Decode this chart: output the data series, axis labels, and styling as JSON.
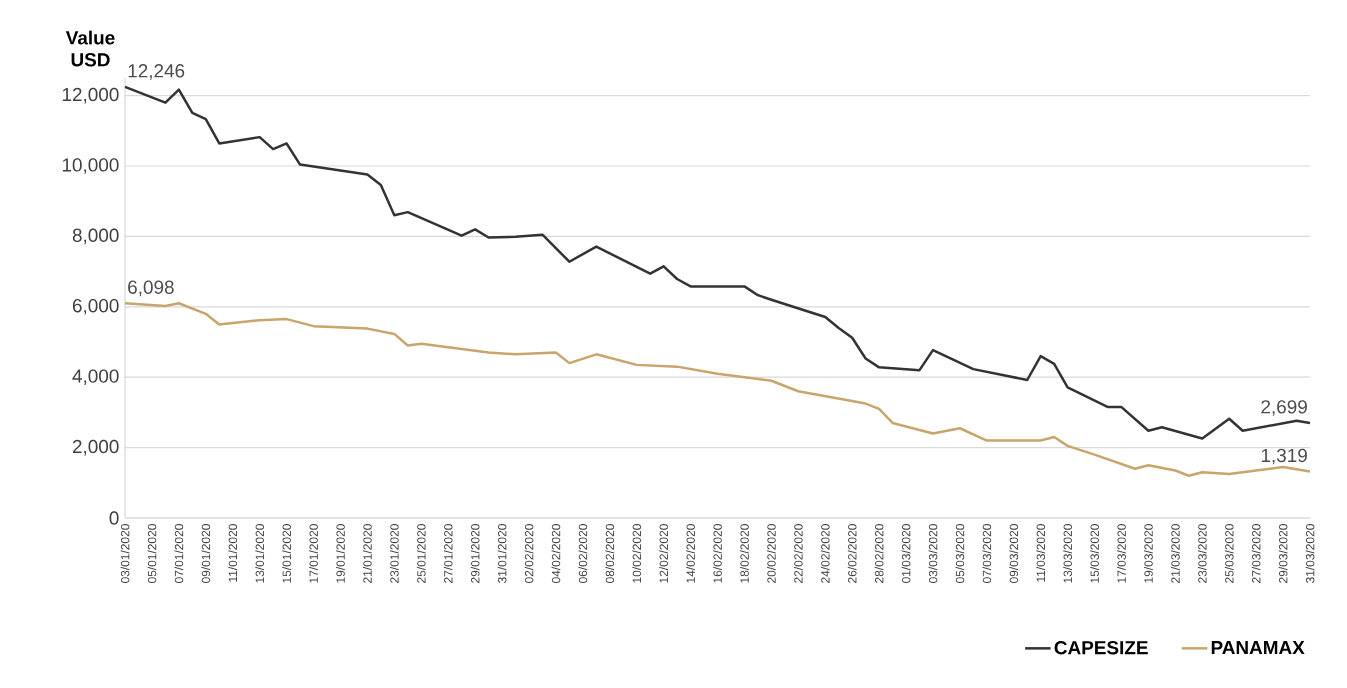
{
  "chart_data": {
    "type": "line",
    "ylabel": "Value USD",
    "xlim": [
      "2020-01-03",
      "2020-03-31"
    ],
    "ylim": [
      0,
      12500
    ],
    "xticks": [
      {
        "value": "2020-01-03",
        "label": "03/01/2020"
      },
      {
        "value": "2020-01-05",
        "label": "05/01/2020"
      },
      {
        "value": "2020-01-07",
        "label": "07/01/2020"
      },
      {
        "value": "2020-01-09",
        "label": "09/01/2020"
      },
      {
        "value": "2020-01-11",
        "label": "11/01/2020"
      },
      {
        "value": "2020-01-13",
        "label": "13/01/2020"
      },
      {
        "value": "2020-01-15",
        "label": "15/01/2020"
      },
      {
        "value": "2020-01-17",
        "label": "17/01/2020"
      },
      {
        "value": "2020-01-19",
        "label": "19/01/2020"
      },
      {
        "value": "2020-01-21",
        "label": "21/01/2020"
      },
      {
        "value": "2020-01-23",
        "label": "23/01/2020"
      },
      {
        "value": "2020-01-25",
        "label": "25/01/2020"
      },
      {
        "value": "2020-01-27",
        "label": "27/01/2020"
      },
      {
        "value": "2020-01-29",
        "label": "29/01/2020"
      },
      {
        "value": "2020-01-31",
        "label": "31/01/2020"
      },
      {
        "value": "2020-02-02",
        "label": "02/02/2020"
      },
      {
        "value": "2020-02-04",
        "label": "04/02/2020"
      },
      {
        "value": "2020-02-06",
        "label": "06/02/2020"
      },
      {
        "value": "2020-02-08",
        "label": "08/02/2020"
      },
      {
        "value": "2020-02-10",
        "label": "10/02/2020"
      },
      {
        "value": "2020-02-12",
        "label": "12/02/2020"
      },
      {
        "value": "2020-02-14",
        "label": "14/02/2020"
      },
      {
        "value": "2020-02-16",
        "label": "16/02/2020"
      },
      {
        "value": "2020-02-18",
        "label": "18/02/2020"
      },
      {
        "value": "2020-02-20",
        "label": "20/02/2020"
      },
      {
        "value": "2020-02-22",
        "label": "22/02/2020"
      },
      {
        "value": "2020-02-24",
        "label": "24/02/2020"
      },
      {
        "value": "2020-02-26",
        "label": "26/02/2020"
      },
      {
        "value": "2020-02-28",
        "label": "28/02/2020"
      },
      {
        "value": "2020-03-01",
        "label": "01/03/2020"
      },
      {
        "value": "2020-03-03",
        "label": "03/03/2020"
      },
      {
        "value": "2020-03-05",
        "label": "05/03/2020"
      },
      {
        "value": "2020-03-07",
        "label": "07/03/2020"
      },
      {
        "value": "2020-03-09",
        "label": "09/03/2020"
      },
      {
        "value": "2020-03-11",
        "label": "11/03/2020"
      },
      {
        "value": "2020-03-13",
        "label": "13/03/2020"
      },
      {
        "value": "2020-03-15",
        "label": "15/03/2020"
      },
      {
        "value": "2020-03-17",
        "label": "17/03/2020"
      },
      {
        "value": "2020-03-19",
        "label": "19/03/2020"
      },
      {
        "value": "2020-03-21",
        "label": "21/03/2020"
      },
      {
        "value": "2020-03-23",
        "label": "23/03/2020"
      },
      {
        "value": "2020-03-25",
        "label": "25/03/2020"
      },
      {
        "value": "2020-03-27",
        "label": "27/03/2020"
      },
      {
        "value": "2020-03-29",
        "label": "29/03/2020"
      },
      {
        "value": "2020-03-31",
        "label": "31/03/2020"
      }
    ],
    "yticks": [
      0,
      {
        "value": 2000,
        "label": "2,000"
      },
      {
        "value": 4000,
        "label": "4,000"
      },
      {
        "value": 6000,
        "label": "6,000"
      },
      {
        "value": 8000,
        "label": "8,000"
      },
      {
        "value": 10000,
        "label": "10,000"
      },
      {
        "value": 12000,
        "label": "12,000"
      }
    ],
    "grid": "y",
    "legend": "bottom right",
    "marker": "none",
    "line_style": "solid",
    "series": [
      {
        "name": "CAPESIZE",
        "color": "#333333",
        "x": [
          "2020-01-03",
          "2020-01-06",
          "2020-01-07",
          "2020-01-08",
          "2020-01-09",
          "2020-01-10",
          "2020-01-13",
          "2020-01-14",
          "2020-01-15",
          "2020-01-16",
          "2020-01-21",
          "2020-01-22",
          "2020-01-23",
          "2020-01-24",
          "2020-01-28",
          "2020-01-29",
          "2020-01-30",
          "2020-02-01",
          "2020-02-03",
          "2020-02-05",
          "2020-02-07",
          "2020-02-11",
          "2020-02-12",
          "2020-02-13",
          "2020-02-14",
          "2020-02-18",
          "2020-02-19",
          "2020-02-20",
          "2020-02-24",
          "2020-02-25",
          "2020-02-26",
          "2020-02-27",
          "2020-02-28",
          "2020-03-02",
          "2020-03-03",
          "2020-03-06",
          "2020-03-10",
          "2020-03-11",
          "2020-03-12",
          "2020-03-13",
          "2020-03-16",
          "2020-03-17",
          "2020-03-19",
          "2020-03-20",
          "2020-03-23",
          "2020-03-25",
          "2020-03-26",
          "2020-03-30",
          "2020-03-31"
        ],
        "values": [
          12246,
          11800,
          12170,
          11510,
          11330,
          10640,
          10820,
          10480,
          10640,
          10040,
          9760,
          9460,
          8600,
          8690,
          8020,
          8200,
          7970,
          7990,
          8050,
          7280,
          7710,
          6940,
          7150,
          6790,
          6580,
          6580,
          6330,
          6200,
          5710,
          5400,
          5120,
          4530,
          4280,
          4200,
          4770,
          4230,
          3920,
          4600,
          4380,
          3710,
          3150,
          3150,
          2480,
          2580,
          2260,
          2820,
          2480,
          2760,
          2699
        ]
      },
      {
        "name": "PANAMAX",
        "color": "#c9a46b",
        "x": [
          "2020-01-03",
          "2020-01-06",
          "2020-01-07",
          "2020-01-09",
          "2020-01-10",
          "2020-01-13",
          "2020-01-15",
          "2020-01-17",
          "2020-01-21",
          "2020-01-23",
          "2020-01-24",
          "2020-01-25",
          "2020-01-29",
          "2020-01-30",
          "2020-02-01",
          "2020-02-04",
          "2020-02-05",
          "2020-02-07",
          "2020-02-10",
          "2020-02-13",
          "2020-02-16",
          "2020-02-20",
          "2020-02-22",
          "2020-02-27",
          "2020-02-28",
          "2020-02-29",
          "2020-03-03",
          "2020-03-05",
          "2020-03-07",
          "2020-03-11",
          "2020-03-12",
          "2020-03-13",
          "2020-03-15",
          "2020-03-18",
          "2020-03-19",
          "2020-03-21",
          "2020-03-22",
          "2020-03-23",
          "2020-03-25",
          "2020-03-27",
          "2020-03-29",
          "2020-03-31"
        ],
        "values": [
          6098,
          6020,
          6100,
          5800,
          5500,
          5620,
          5650,
          5450,
          5380,
          5230,
          4900,
          4950,
          4750,
          4700,
          4650,
          4700,
          4400,
          4650,
          4350,
          4300,
          4100,
          3900,
          3600,
          3250,
          3100,
          2700,
          2400,
          2550,
          2200,
          2200,
          2300,
          2050,
          1800,
          1400,
          1500,
          1350,
          1200,
          1300,
          1250,
          1350,
          1450,
          1319
        ]
      }
    ],
    "annotations": [
      {
        "text": "12,246",
        "x": "2020-01-03",
        "y": 12246
      },
      {
        "text": "6,098",
        "x": "2020-01-03",
        "y": 6098
      },
      {
        "text": "2,699",
        "x": "2020-03-31",
        "y": 2699
      },
      {
        "text": "1,319",
        "x": "2020-03-31",
        "y": 1319
      }
    ]
  }
}
